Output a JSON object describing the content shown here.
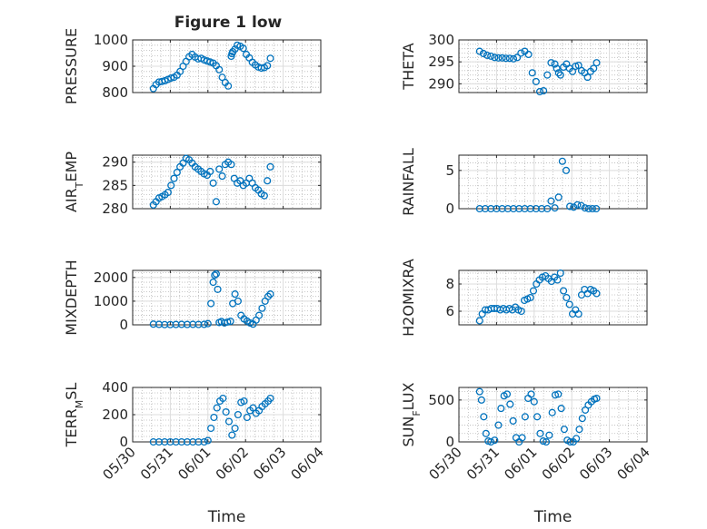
{
  "figure_title": "Figure 1 low",
  "colors": {
    "marker": "#0072BD",
    "axis": "#262626",
    "grid_major": "#dcdcdc",
    "grid_minor": "#b8b8b8"
  },
  "xaxis": {
    "label": "Time",
    "ticks": [
      "05/30",
      "05/31",
      "06/01",
      "06/02",
      "06/03",
      "06/04"
    ],
    "range_days": [
      0,
      5
    ]
  },
  "chart_data": [
    {
      "type": "scatter",
      "ylabel": "PRESSURE",
      "ylim": [
        800,
        1000
      ],
      "yticks": [
        800,
        900,
        1000
      ],
      "grid": true,
      "x": [
        0.55,
        0.62,
        0.7,
        0.78,
        0.86,
        0.94,
        1.02,
        1.1,
        1.18,
        1.26,
        1.34,
        1.42,
        1.5,
        1.58,
        1.66,
        1.74,
        1.82,
        1.9,
        1.98,
        2.06,
        2.14,
        2.22,
        2.3,
        2.38,
        2.46,
        2.54,
        2.62,
        2.64,
        2.66,
        2.72,
        2.78,
        2.86,
        2.94,
        3.02,
        3.1,
        3.18,
        3.26,
        3.34,
        3.42,
        3.5,
        3.58,
        3.66
      ],
      "y": [
        815,
        830,
        840,
        842,
        845,
        850,
        855,
        858,
        866,
        880,
        900,
        918,
        936,
        945,
        935,
        928,
        930,
        924,
        920,
        916,
        912,
        902,
        887,
        858,
        838,
        825,
        938,
        948,
        955,
        965,
        980,
        976,
        968,
        945,
        932,
        915,
        905,
        897,
        893,
        895,
        902,
        930
      ]
    },
    {
      "type": "scatter",
      "ylabel": "THETA",
      "ylim": [
        288,
        300
      ],
      "yticks": [
        290,
        295,
        300
      ],
      "grid": true,
      "x": [
        0.55,
        0.65,
        0.75,
        0.85,
        0.95,
        1.05,
        1.15,
        1.25,
        1.35,
        1.45,
        1.55,
        1.65,
        1.75,
        1.85,
        1.95,
        2.05,
        2.15,
        2.25,
        2.35,
        2.45,
        2.55,
        2.6,
        2.65,
        2.7,
        2.78,
        2.86,
        2.94,
        3.02,
        3.1,
        3.18,
        3.26,
        3.34,
        3.42,
        3.5,
        3.58,
        3.66
      ],
      "y": [
        297.4,
        296.9,
        296.5,
        296.3,
        296.0,
        295.9,
        295.9,
        295.8,
        295.8,
        295.7,
        296.0,
        297.0,
        297.4,
        296.7,
        292.5,
        290.5,
        288.2,
        288.4,
        292.0,
        294.8,
        294.5,
        293.5,
        292.5,
        292.0,
        293.8,
        294.5,
        293.5,
        292.8,
        294.0,
        294.2,
        293.0,
        292.5,
        291.5,
        292.8,
        293.5,
        294.8
      ]
    },
    {
      "type": "scatter",
      "ylabel": "AIR_TEMP",
      "ylim": [
        280,
        291.5
      ],
      "yticks": [
        280,
        285,
        290
      ],
      "grid": true,
      "x": [
        0.55,
        0.62,
        0.7,
        0.78,
        0.86,
        0.94,
        1.02,
        1.1,
        1.18,
        1.26,
        1.34,
        1.42,
        1.5,
        1.58,
        1.66,
        1.74,
        1.82,
        1.9,
        1.98,
        2.06,
        2.14,
        2.22,
        2.3,
        2.38,
        2.46,
        2.54,
        2.62,
        2.7,
        2.78,
        2.86,
        2.94,
        3.02,
        3.1,
        3.18,
        3.26,
        3.34,
        3.42,
        3.5,
        3.58,
        3.66
      ],
      "y": [
        280.8,
        281.5,
        282.3,
        282.6,
        283.0,
        283.5,
        285.0,
        286.5,
        287.8,
        289.0,
        289.8,
        290.8,
        290.5,
        289.8,
        289.0,
        288.5,
        288.0,
        287.5,
        287.2,
        288.0,
        285.5,
        281.5,
        288.5,
        287.0,
        289.5,
        290.0,
        289.5,
        286.5,
        285.5,
        286.0,
        285.0,
        285.5,
        286.5,
        285.5,
        284.5,
        284.0,
        283.2,
        282.8,
        286.0,
        289.0
      ]
    },
    {
      "type": "scatter",
      "ylabel": "RAINFALL",
      "ylim": [
        0,
        7
      ],
      "yticks": [
        0,
        5
      ],
      "grid": true,
      "x": [
        0.55,
        0.7,
        0.85,
        1.0,
        1.15,
        1.3,
        1.45,
        1.6,
        1.75,
        1.9,
        2.05,
        2.2,
        2.35,
        2.45,
        2.55,
        2.65,
        2.75,
        2.85,
        2.95,
        3.05,
        3.15,
        3.25,
        3.35,
        3.45,
        3.55,
        3.65
      ],
      "y": [
        0,
        0,
        0,
        0,
        0,
        0,
        0,
        0,
        0,
        0,
        0,
        0,
        0,
        1.0,
        0.1,
        1.5,
        6.2,
        5.0,
        0.3,
        0.2,
        0.5,
        0.4,
        0.1,
        0,
        0,
        0
      ]
    },
    {
      "type": "scatter",
      "ylabel": "MIXDEPTH",
      "ylim": [
        0,
        2300
      ],
      "yticks": [
        0,
        1000,
        2000
      ],
      "grid": true,
      "x": [
        0.55,
        0.7,
        0.85,
        1.0,
        1.15,
        1.3,
        1.45,
        1.6,
        1.75,
        1.9,
        2.0,
        2.08,
        2.14,
        2.18,
        2.22,
        2.26,
        2.3,
        2.36,
        2.44,
        2.52,
        2.6,
        2.66,
        2.72,
        2.8,
        2.88,
        2.96,
        3.04,
        3.12,
        3.2,
        3.28,
        3.36,
        3.44,
        3.52,
        3.6,
        3.66
      ],
      "y": [
        30,
        20,
        10,
        10,
        15,
        20,
        15,
        20,
        15,
        20,
        50,
        900,
        1800,
        2100,
        2150,
        1500,
        100,
        140,
        80,
        120,
        150,
        900,
        1300,
        1000,
        400,
        250,
        160,
        80,
        30,
        200,
        400,
        700,
        1000,
        1200,
        1300
      ]
    },
    {
      "type": "scatter",
      "ylabel": "H2OMIXRA",
      "ylim": [
        5,
        9
      ],
      "yticks": [
        6,
        8
      ],
      "grid": true,
      "x": [
        0.55,
        0.62,
        0.7,
        0.78,
        0.86,
        0.94,
        1.02,
        1.1,
        1.18,
        1.26,
        1.34,
        1.42,
        1.5,
        1.58,
        1.66,
        1.74,
        1.82,
        1.9,
        1.98,
        2.06,
        2.14,
        2.22,
        2.3,
        2.38,
        2.46,
        2.54,
        2.62,
        2.7,
        2.78,
        2.86,
        2.94,
        3.02,
        3.1,
        3.18,
        3.26,
        3.34,
        3.42,
        3.5,
        3.58,
        3.66
      ],
      "y": [
        5.3,
        5.8,
        6.1,
        6.1,
        6.2,
        6.2,
        6.2,
        6.1,
        6.2,
        6.1,
        6.2,
        6.1,
        6.3,
        6.1,
        6.0,
        6.8,
        6.9,
        7.0,
        7.5,
        8.0,
        8.3,
        8.5,
        8.6,
        8.4,
        8.2,
        8.5,
        8.3,
        8.8,
        7.5,
        7.0,
        6.5,
        5.8,
        6.1,
        5.8,
        7.2,
        7.6,
        7.3,
        7.6,
        7.5,
        7.3
      ]
    },
    {
      "type": "scatter",
      "ylabel": "TERR_MSL",
      "ylim": [
        0,
        400
      ],
      "yticks": [
        0,
        200,
        400
      ],
      "grid": true,
      "x": [
        0.55,
        0.7,
        0.85,
        1.0,
        1.15,
        1.3,
        1.45,
        1.6,
        1.75,
        1.9,
        2.0,
        2.08,
        2.16,
        2.24,
        2.32,
        2.4,
        2.48,
        2.56,
        2.64,
        2.72,
        2.8,
        2.88,
        2.96,
        3.04,
        3.12,
        3.2,
        3.28,
        3.36,
        3.44,
        3.52,
        3.6,
        3.66
      ],
      "y": [
        0,
        0,
        0,
        0,
        0,
        0,
        0,
        0,
        0,
        0,
        10,
        100,
        180,
        250,
        300,
        320,
        220,
        150,
        50,
        100,
        200,
        290,
        300,
        180,
        230,
        250,
        210,
        230,
        260,
        280,
        300,
        320
      ]
    },
    {
      "type": "scatter",
      "ylabel": "SUN_FLUX",
      "ylim": [
        0,
        650
      ],
      "yticks": [
        0,
        500
      ],
      "grid": true,
      "x": [
        0.55,
        0.6,
        0.66,
        0.72,
        0.78,
        0.85,
        0.95,
        1.05,
        1.12,
        1.2,
        1.28,
        1.36,
        1.44,
        1.52,
        1.6,
        1.68,
        1.76,
        1.84,
        1.92,
        2.0,
        2.08,
        2.16,
        2.24,
        2.32,
        2.4,
        2.48,
        2.56,
        2.64,
        2.72,
        2.8,
        2.88,
        2.96,
        3.04,
        3.12,
        3.2,
        3.28,
        3.36,
        3.44,
        3.52,
        3.6,
        3.66
      ],
      "y": [
        600,
        500,
        300,
        100,
        10,
        0,
        20,
        200,
        400,
        550,
        570,
        450,
        250,
        50,
        0,
        50,
        300,
        520,
        570,
        480,
        300,
        100,
        10,
        0,
        80,
        350,
        560,
        570,
        400,
        150,
        20,
        0,
        0,
        40,
        150,
        280,
        380,
        440,
        480,
        510,
        520
      ]
    }
  ]
}
